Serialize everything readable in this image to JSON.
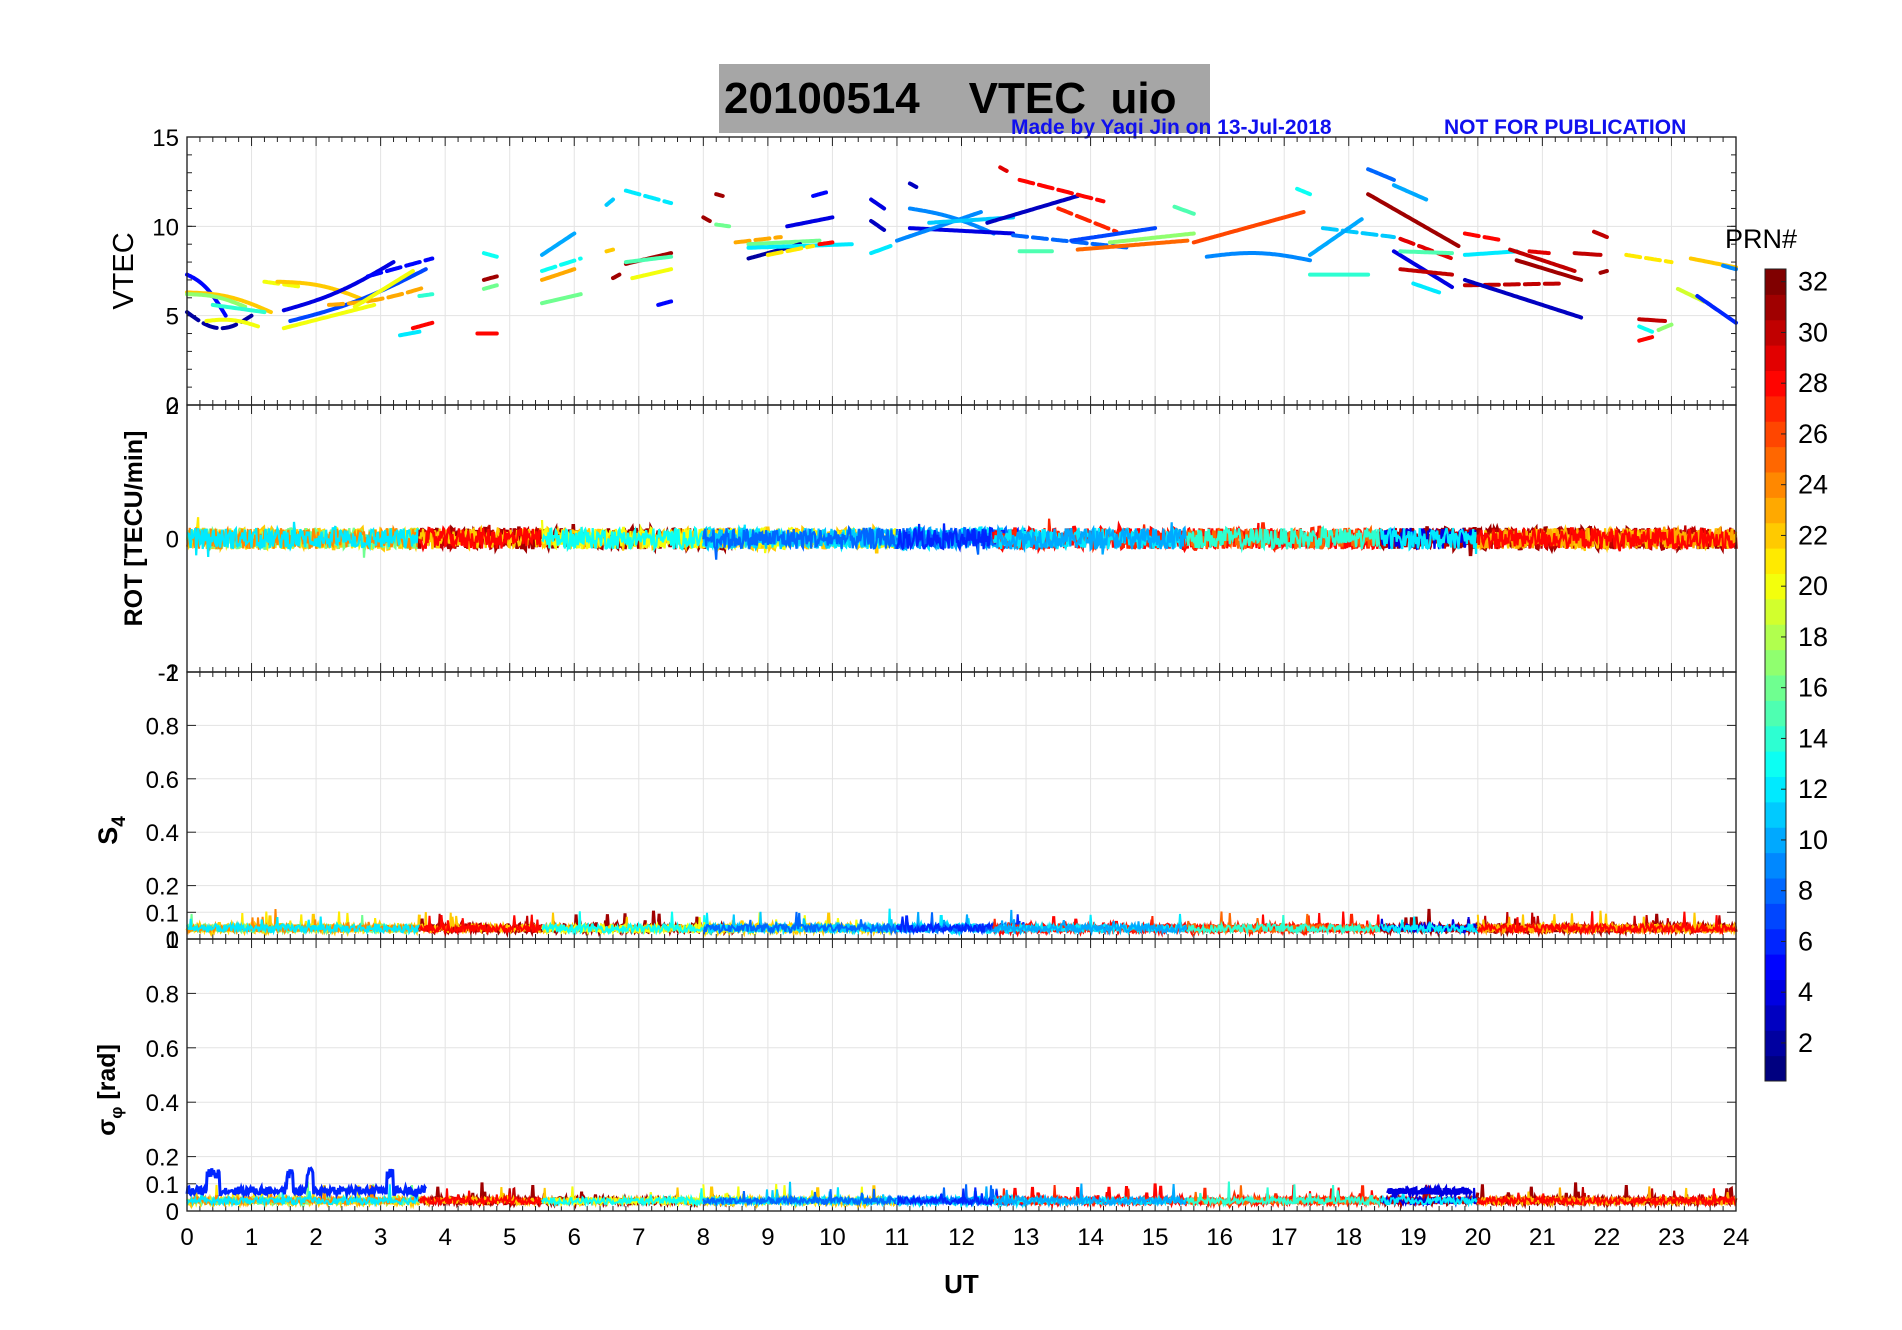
{
  "title": {
    "date": "20100514",
    "label": "VTEC  uio"
  },
  "credit": {
    "maker": "Made by Yaqi Jin on 13-Jul-2018",
    "notice": "NOT FOR PUBLICATION"
  },
  "colors": {
    "title_bg": "#a6a6a6",
    "credit": "#1010ee",
    "grid": "#e3e3e3"
  },
  "chart_data": [
    {
      "type": "line",
      "panel": "VTEC",
      "ylabel": "VTEC",
      "ylim": [
        0,
        15
      ],
      "yticks": [
        0,
        5,
        10,
        15
      ],
      "xlim": [
        0,
        24
      ],
      "series_by": "PRN",
      "note": "Per-satellite VTEC arcs, colored by PRN; values range roughly 3.5–13 TECU"
    },
    {
      "type": "line",
      "panel": "ROT",
      "ylabel": "ROT [TECU/min]",
      "ylim": [
        -2,
        2
      ],
      "yticks": [
        -2,
        0,
        2
      ],
      "xlim": [
        0,
        24
      ],
      "note": "Rate of TEC, values mostly within about ±0.3 TECU/min"
    },
    {
      "type": "line",
      "panel": "S4",
      "ylabel": "S4",
      "ylim": [
        0,
        1
      ],
      "yticks": [
        0,
        0.1,
        0.2,
        0.4,
        0.6,
        0.8,
        1
      ],
      "xlim": [
        0,
        24
      ],
      "note": "Amplitude scintillation index, mostly 0.03–0.08 with peaks near 0.1"
    },
    {
      "type": "line",
      "panel": "sigma_phi",
      "ylabel": "σφ [rad]",
      "ylim": [
        0,
        1
      ],
      "yticks": [
        0,
        0.1,
        0.2,
        0.4,
        0.6,
        0.8,
        1
      ],
      "xlim": [
        0,
        24
      ],
      "xlabel": "UT",
      "xticks": [
        0,
        1,
        2,
        3,
        4,
        5,
        6,
        7,
        8,
        9,
        10,
        11,
        12,
        13,
        14,
        15,
        16,
        17,
        18,
        19,
        20,
        21,
        22,
        23,
        24
      ],
      "note": "Phase scintillation index, mostly 0.03–0.08, peaks up to ~0.16"
    }
  ],
  "colorbar": {
    "label": "PRN#",
    "range": [
      1,
      32
    ],
    "ticks": [
      2,
      4,
      6,
      8,
      10,
      12,
      14,
      16,
      18,
      20,
      22,
      24,
      26,
      28,
      30,
      32
    ],
    "colormap": "jet"
  }
}
